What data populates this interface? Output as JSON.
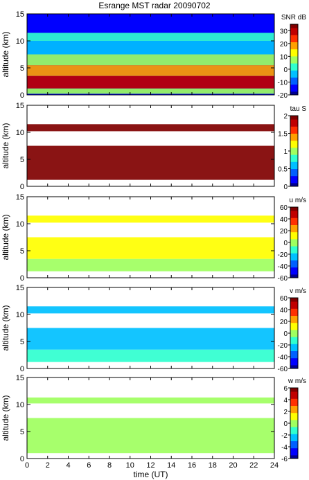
{
  "figure": {
    "title": "Esrange MST radar 20090702",
    "xlabel": "time (UT)"
  },
  "colormap": [
    "#00008f",
    "#0000ff",
    "#0060ff",
    "#00c0ff",
    "#30ffcf",
    "#a0ff60",
    "#ffff00",
    "#ffa000",
    "#ff3000",
    "#c00000",
    "#800000"
  ],
  "chart_data": [
    {
      "type": "heatmap",
      "title": "",
      "xlabel": "",
      "ylabel": "altitude (km)",
      "colorbar_label": "SNR dB",
      "xlim": [
        0,
        24
      ],
      "ylim": [
        0,
        15
      ],
      "clim": [
        -20,
        35
      ],
      "x_ticks": [
        0,
        2,
        4,
        6,
        8,
        10,
        12,
        14,
        16,
        18,
        20,
        22,
        24
      ],
      "y_ticks": [
        0,
        5,
        10,
        15
      ],
      "colorbar_ticks": [
        -20,
        -10,
        0,
        10,
        20,
        30
      ],
      "layers": [
        {
          "alt_min": 0.2,
          "alt_max": 1.2,
          "value": 5
        },
        {
          "alt_min": 1.2,
          "alt_max": 3.5,
          "value": 28
        },
        {
          "alt_min": 3.5,
          "alt_max": 5.5,
          "value": 20
        },
        {
          "alt_min": 5.5,
          "alt_max": 7.5,
          "value": 8
        },
        {
          "alt_min": 7.5,
          "alt_max": 10.0,
          "value": -5
        },
        {
          "alt_min": 10.0,
          "alt_max": 11.5,
          "value": 0
        },
        {
          "alt_min": 11.5,
          "alt_max": 15.0,
          "value": -12
        }
      ]
    },
    {
      "type": "heatmap",
      "title": "",
      "xlabel": "",
      "ylabel": "altitude (km)",
      "colorbar_label": "tau S",
      "xlim": [
        0,
        24
      ],
      "ylim": [
        0,
        15
      ],
      "clim": [
        0,
        2
      ],
      "x_ticks": [
        0,
        2,
        4,
        6,
        8,
        10,
        12,
        14,
        16,
        18,
        20,
        22,
        24
      ],
      "y_ticks": [
        0,
        5,
        10,
        15
      ],
      "colorbar_ticks": [
        0,
        0.5,
        1,
        1.5,
        2
      ],
      "layers": [
        {
          "alt_min": 1.2,
          "alt_max": 7.5,
          "value": 2
        },
        {
          "alt_min": 10.2,
          "alt_max": 11.5,
          "value": 2
        }
      ]
    },
    {
      "type": "heatmap",
      "title": "",
      "xlabel": "",
      "ylabel": "altitude (km)",
      "colorbar_label": "u m/s",
      "xlim": [
        0,
        24
      ],
      "ylim": [
        0,
        15
      ],
      "clim": [
        -60,
        60
      ],
      "x_ticks": [
        0,
        2,
        4,
        6,
        8,
        10,
        12,
        14,
        16,
        18,
        20,
        22,
        24
      ],
      "y_ticks": [
        0,
        5,
        10,
        15
      ],
      "colorbar_ticks": [
        -60,
        -40,
        -20,
        0,
        20,
        40,
        60
      ],
      "layers": [
        {
          "alt_min": 1.2,
          "alt_max": 3.5,
          "value": 5
        },
        {
          "alt_min": 3.5,
          "alt_max": 7.5,
          "value": 12
        },
        {
          "alt_min": 10.2,
          "alt_max": 11.5,
          "value": 15
        }
      ]
    },
    {
      "type": "heatmap",
      "title": "",
      "xlabel": "",
      "ylabel": "altitude (km)",
      "colorbar_label": "v m/s",
      "xlim": [
        0,
        24
      ],
      "ylim": [
        0,
        15
      ],
      "clim": [
        -60,
        60
      ],
      "x_ticks": [
        0,
        2,
        4,
        6,
        8,
        10,
        12,
        14,
        16,
        18,
        20,
        22,
        24
      ],
      "y_ticks": [
        0,
        5,
        10,
        15
      ],
      "colorbar_ticks": [
        -60,
        -40,
        -20,
        0,
        20,
        40,
        60
      ],
      "layers": [
        {
          "alt_min": 1.2,
          "alt_max": 3.5,
          "value": -12
        },
        {
          "alt_min": 3.5,
          "alt_max": 7.5,
          "value": -22
        },
        {
          "alt_min": 10.2,
          "alt_max": 11.5,
          "value": -25
        }
      ]
    },
    {
      "type": "heatmap",
      "title": "",
      "xlabel": "time (UT)",
      "ylabel": "altitude (km)",
      "colorbar_label": "w m/s",
      "xlim": [
        0,
        24
      ],
      "ylim": [
        0,
        15
      ],
      "clim": [
        -6,
        6
      ],
      "x_ticks": [
        0,
        2,
        4,
        6,
        8,
        10,
        12,
        14,
        16,
        18,
        20,
        22,
        24
      ],
      "y_ticks": [
        0,
        5,
        10,
        15
      ],
      "colorbar_ticks": [
        -6,
        -4,
        -2,
        0,
        2,
        4,
        6
      ],
      "layers": [
        {
          "alt_min": 1.0,
          "alt_max": 7.5,
          "value": 0.3
        },
        {
          "alt_min": 10.2,
          "alt_max": 11.3,
          "value": 0.2
        }
      ]
    }
  ]
}
